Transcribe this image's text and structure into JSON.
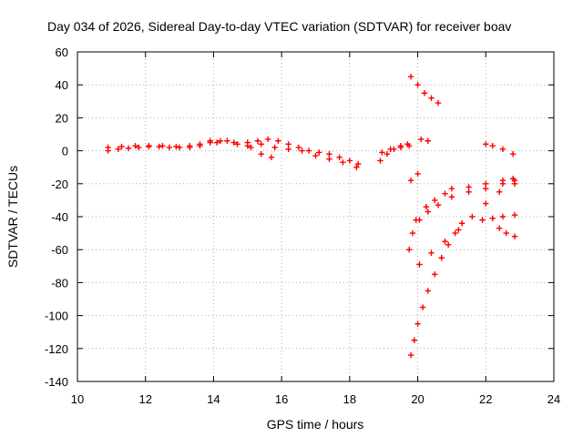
{
  "chart_data": {
    "type": "scatter",
    "title": "Day 034 of 2026, Sidereal Day-to-day VTEC variation (SDTVAR) for receiver boav",
    "xlabel": "GPS time / hours",
    "ylabel": "SDTVAR / TECUs",
    "xlim": [
      10,
      24
    ],
    "ylim": [
      -140,
      60
    ],
    "xticks": [
      10,
      12,
      14,
      16,
      18,
      20,
      22,
      24
    ],
    "yticks": [
      60,
      40,
      20,
      0,
      -20,
      -40,
      -60,
      -80,
      -100,
      -120,
      -140
    ],
    "grid": true,
    "marker": "plus",
    "color": "#ff0000",
    "series": [
      {
        "x": [
          10.9,
          11.2,
          11.5,
          11.8,
          12.1,
          12.4,
          12.7,
          13.0,
          13.3,
          13.6,
          13.9,
          14.1,
          14.4,
          14.7,
          15.0,
          15.3,
          15.6,
          15.9,
          16.2,
          16.5,
          16.8,
          17.1,
          17.4,
          17.7,
          18.0,
          18.25
        ],
        "y": [
          0,
          1,
          1.5,
          2,
          2.5,
          2.5,
          2,
          2,
          3,
          4,
          6,
          5,
          6,
          4,
          5,
          6,
          7,
          6,
          4,
          2,
          0,
          -1,
          -2,
          -4,
          -6,
          -8
        ]
      },
      {
        "x": [
          10.9,
          11.3,
          11.7,
          12.1,
          12.5,
          12.9,
          13.3,
          13.6,
          13.9,
          14.2,
          14.6,
          15.0,
          15.4,
          15.8,
          16.2,
          16.6,
          17.0,
          17.4,
          17.8,
          18.2
        ],
        "y": [
          2,
          2.5,
          3,
          3,
          3,
          2.5,
          2,
          3,
          5,
          6,
          5,
          3,
          4,
          2,
          1,
          0,
          -3,
          -5,
          -7,
          -10
        ]
      },
      {
        "x": [
          15.1,
          15.4,
          15.7
        ],
        "y": [
          2,
          -2,
          -4
        ]
      },
      {
        "x": [
          18.9,
          19.1,
          19.3,
          19.5,
          19.7
        ],
        "y": [
          -6,
          -2,
          1,
          3,
          4
        ]
      },
      {
        "x": [
          18.95,
          19.2,
          19.5,
          19.75
        ],
        "y": [
          -1,
          1,
          2,
          3
        ]
      },
      {
        "x": [
          19.8,
          20.0,
          20.2,
          20.4,
          20.6
        ],
        "y": [
          45,
          40,
          35,
          32,
          29
        ]
      },
      {
        "x": [
          20.1,
          20.3
        ],
        "y": [
          7,
          6
        ]
      },
      {
        "x": [
          19.8,
          20.0
        ],
        "y": [
          -18,
          -14
        ]
      },
      {
        "x": [
          19.75,
          19.85,
          19.95
        ],
        "y": [
          -60,
          -50,
          -42
        ]
      },
      {
        "x": [
          20.25,
          20.5,
          20.8,
          21.0,
          21.5,
          22.0,
          22.5,
          22.8
        ],
        "y": [
          -34,
          -30,
          -26,
          -23,
          -22,
          -20,
          -18,
          -17
        ]
      },
      {
        "x": [
          20.05,
          20.3,
          20.6,
          21.0,
          21.5,
          22.0,
          22.5,
          22.85
        ],
        "y": [
          -42,
          -37,
          -33,
          -28,
          -25,
          -23,
          -20,
          -18
        ]
      },
      {
        "x": [
          20.05,
          20.4,
          20.8,
          21.2,
          21.6,
          22.0,
          22.4,
          22.85
        ],
        "y": [
          -69,
          -62,
          -55,
          -48,
          -40,
          -32,
          -25,
          -20
        ]
      },
      {
        "x": [
          19.8,
          19.9,
          20.0,
          20.15,
          20.3,
          20.5,
          20.7,
          20.9,
          21.1,
          21.3
        ],
        "y": [
          -124,
          -115,
          -105,
          -95,
          -85,
          -75,
          -65,
          -57,
          -50,
          -44
        ]
      },
      {
        "x": [
          21.9,
          22.2,
          22.5,
          22.85
        ],
        "y": [
          -42,
          -41,
          -40,
          -39
        ]
      },
      {
        "x": [
          22.4,
          22.6,
          22.85
        ],
        "y": [
          -47,
          -50,
          -52
        ]
      },
      {
        "x": [
          22.0,
          22.2,
          22.5,
          22.8
        ],
        "y": [
          4,
          3,
          1,
          -2
        ]
      }
    ]
  }
}
